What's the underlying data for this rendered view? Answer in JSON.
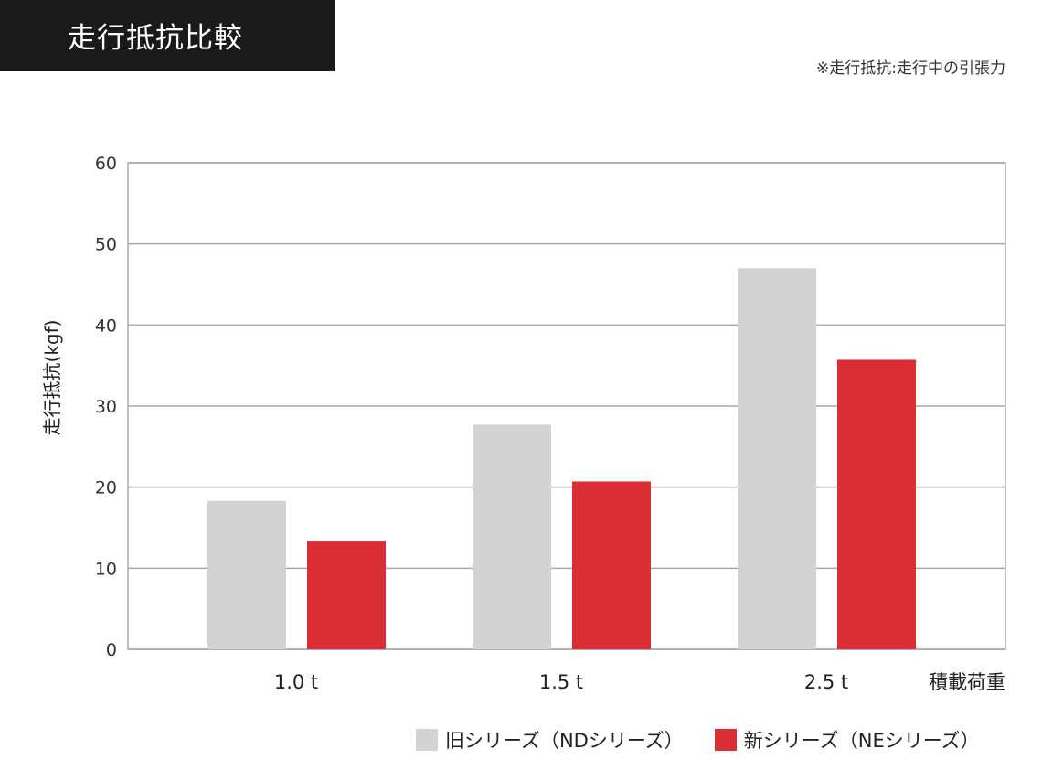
{
  "title": "走行抵抗比較",
  "note": "※走行抵抗:走行中の引張力",
  "chart_data": {
    "type": "bar",
    "title": "走行抵抗比較",
    "xlabel": "積載荷重",
    "ylabel": "走行抵抗(kgf)",
    "categories": [
      "1.0 t",
      "1.5 t",
      "2.5 t"
    ],
    "ylim": [
      0,
      60
    ],
    "yticks": [
      "0",
      "10",
      "20",
      "30",
      "40",
      "50",
      "60"
    ],
    "grid": true,
    "legend_position": "bottom-right",
    "series": [
      {
        "name": "旧シリーズ（NDシリーズ）",
        "color": "#d3d3d3",
        "values": [
          18.3,
          27.7,
          47.0
        ]
      },
      {
        "name": "新シリーズ（NEシリーズ）",
        "color": "#db2e34",
        "values": [
          13.3,
          20.7,
          35.7
        ]
      }
    ]
  }
}
